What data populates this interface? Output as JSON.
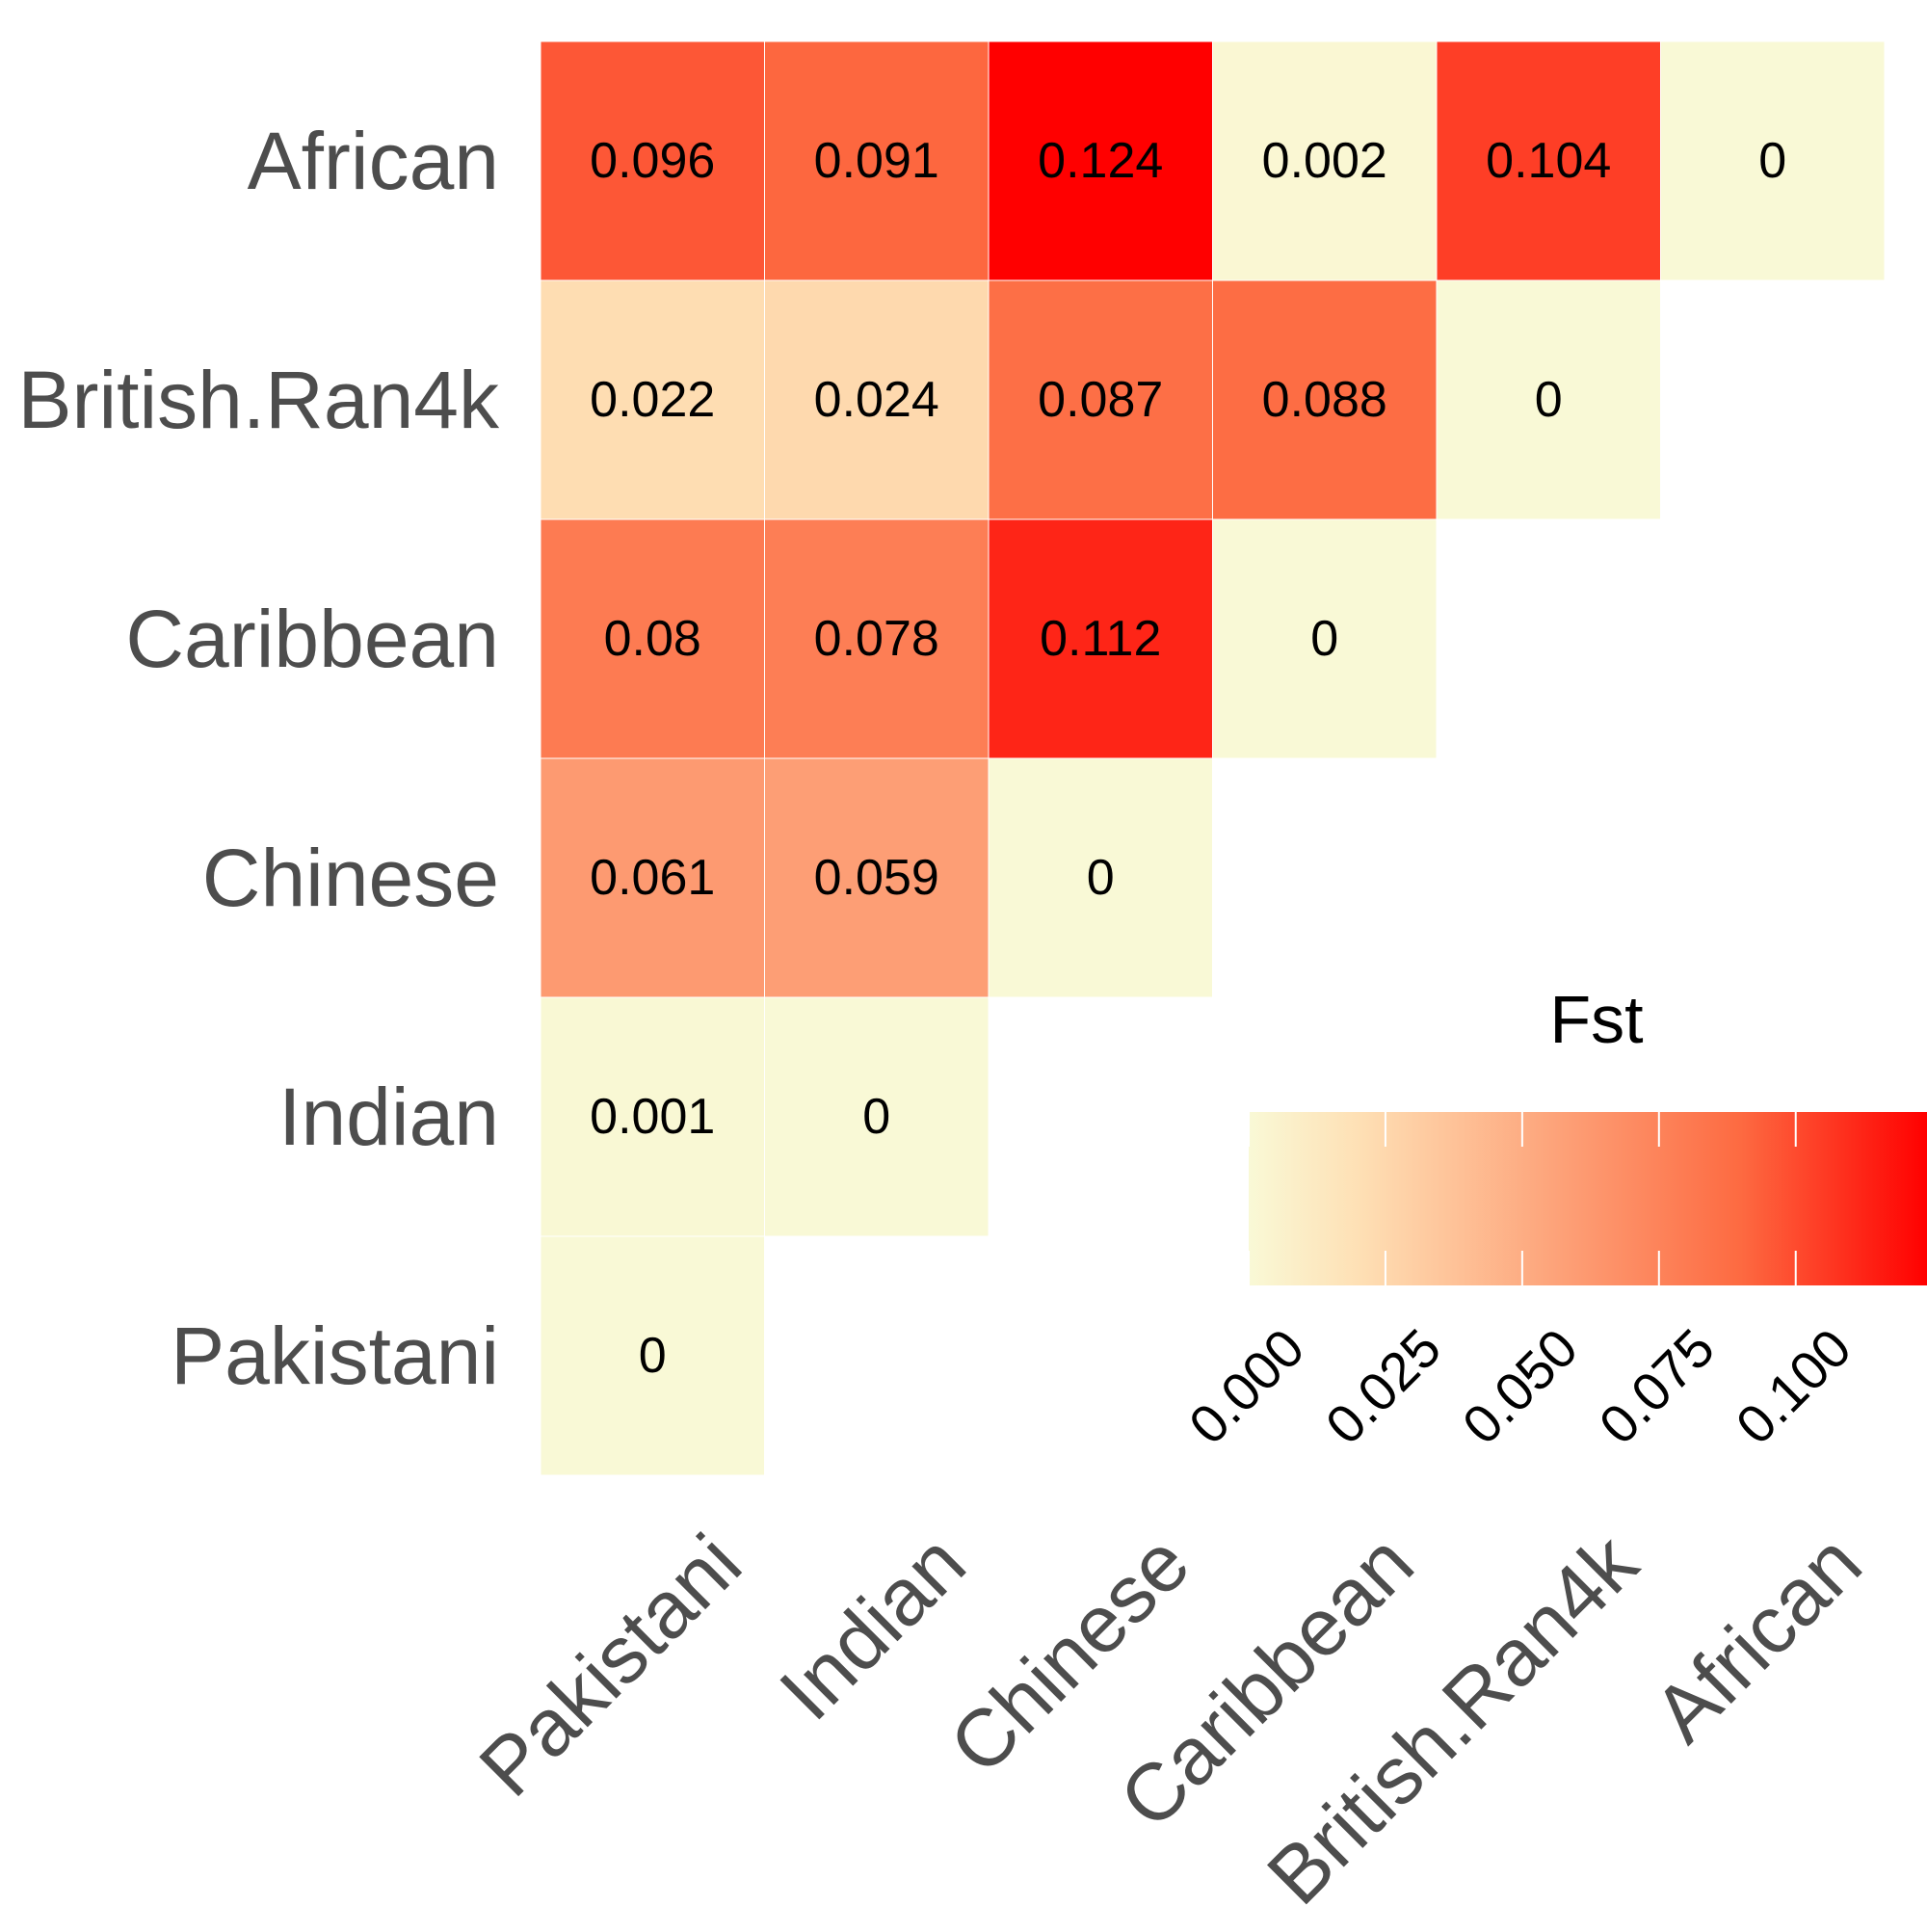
{
  "chart_data": {
    "type": "heatmap",
    "title": "",
    "xlabel": "",
    "ylabel": "",
    "x_categories": [
      "Pakistani",
      "Indian",
      "Chinese",
      "Caribbean",
      "British.Ran4k",
      "African"
    ],
    "y_categories": [
      "Pakistani",
      "Indian",
      "Chinese",
      "Caribbean",
      "British.Ran4k",
      "African"
    ],
    "cells": [
      {
        "x": "Pakistani",
        "y": "Pakistani",
        "value": 0,
        "label": "0"
      },
      {
        "x": "Pakistani",
        "y": "Indian",
        "value": 0.001,
        "label": "0.001"
      },
      {
        "x": "Indian",
        "y": "Indian",
        "value": 0,
        "label": "0"
      },
      {
        "x": "Pakistani",
        "y": "Chinese",
        "value": 0.061,
        "label": "0.061"
      },
      {
        "x": "Indian",
        "y": "Chinese",
        "value": 0.059,
        "label": "0.059"
      },
      {
        "x": "Chinese",
        "y": "Chinese",
        "value": 0,
        "label": "0"
      },
      {
        "x": "Pakistani",
        "y": "Caribbean",
        "value": 0.08,
        "label": "0.08"
      },
      {
        "x": "Indian",
        "y": "Caribbean",
        "value": 0.078,
        "label": "0.078"
      },
      {
        "x": "Chinese",
        "y": "Caribbean",
        "value": 0.112,
        "label": "0.112"
      },
      {
        "x": "Caribbean",
        "y": "Caribbean",
        "value": 0,
        "label": "0"
      },
      {
        "x": "Pakistani",
        "y": "British.Ran4k",
        "value": 0.022,
        "label": "0.022"
      },
      {
        "x": "Indian",
        "y": "British.Ran4k",
        "value": 0.024,
        "label": "0.024"
      },
      {
        "x": "Chinese",
        "y": "British.Ran4k",
        "value": 0.087,
        "label": "0.087"
      },
      {
        "x": "Caribbean",
        "y": "British.Ran4k",
        "value": 0.088,
        "label": "0.088"
      },
      {
        "x": "British.Ran4k",
        "y": "British.Ran4k",
        "value": 0,
        "label": "0"
      },
      {
        "x": "Pakistani",
        "y": "African",
        "value": 0.096,
        "label": "0.096"
      },
      {
        "x": "Indian",
        "y": "African",
        "value": 0.091,
        "label": "0.091"
      },
      {
        "x": "Chinese",
        "y": "African",
        "value": 0.124,
        "label": "0.124"
      },
      {
        "x": "Caribbean",
        "y": "African",
        "value": 0.002,
        "label": "0.002"
      },
      {
        "x": "British.Ran4k",
        "y": "African",
        "value": 0.104,
        "label": "0.104"
      },
      {
        "x": "African",
        "y": "African",
        "value": 0,
        "label": "0"
      }
    ],
    "legend": {
      "title": "Fst",
      "position": "bottom-right",
      "range": [
        0,
        0.124
      ],
      "ticks": [
        0,
        0.025,
        0.05,
        0.075,
        0.1
      ],
      "tick_labels": [
        "0.000",
        "0.025",
        "0.050",
        "0.075",
        "0.100"
      ]
    },
    "color_scale": {
      "low": "#f9f9d6",
      "mid_1": "#fee0b5",
      "mid_2": "#fd9c73",
      "mid_3": "#fd6a41",
      "high": "#ff0000"
    },
    "grid": false
  }
}
